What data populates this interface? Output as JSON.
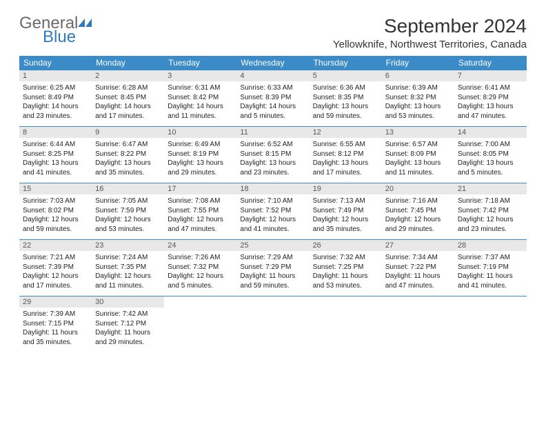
{
  "brand": {
    "word1": "General",
    "word2": "Blue",
    "text_color_gray": "#6a6a6a",
    "text_color_blue": "#2f7bbf",
    "icon_color": "#2f7bbf"
  },
  "title": "September 2024",
  "location": "Yellowknife, Northwest Territories, Canada",
  "colors": {
    "header_bg": "#3b8bc8",
    "header_text": "#ffffff",
    "daynum_bg": "#e8e8e8",
    "daynum_text": "#555555",
    "row_border": "#3b8bc8",
    "body_text": "#222222"
  },
  "weekdays": [
    "Sunday",
    "Monday",
    "Tuesday",
    "Wednesday",
    "Thursday",
    "Friday",
    "Saturday"
  ],
  "weeks": [
    [
      {
        "n": "1",
        "sr": "Sunrise: 6:25 AM",
        "ss": "Sunset: 8:49 PM",
        "dl": "Daylight: 14 hours and 23 minutes."
      },
      {
        "n": "2",
        "sr": "Sunrise: 6:28 AM",
        "ss": "Sunset: 8:45 PM",
        "dl": "Daylight: 14 hours and 17 minutes."
      },
      {
        "n": "3",
        "sr": "Sunrise: 6:31 AM",
        "ss": "Sunset: 8:42 PM",
        "dl": "Daylight: 14 hours and 11 minutes."
      },
      {
        "n": "4",
        "sr": "Sunrise: 6:33 AM",
        "ss": "Sunset: 8:39 PM",
        "dl": "Daylight: 14 hours and 5 minutes."
      },
      {
        "n": "5",
        "sr": "Sunrise: 6:36 AM",
        "ss": "Sunset: 8:35 PM",
        "dl": "Daylight: 13 hours and 59 minutes."
      },
      {
        "n": "6",
        "sr": "Sunrise: 6:39 AM",
        "ss": "Sunset: 8:32 PM",
        "dl": "Daylight: 13 hours and 53 minutes."
      },
      {
        "n": "7",
        "sr": "Sunrise: 6:41 AM",
        "ss": "Sunset: 8:29 PM",
        "dl": "Daylight: 13 hours and 47 minutes."
      }
    ],
    [
      {
        "n": "8",
        "sr": "Sunrise: 6:44 AM",
        "ss": "Sunset: 8:25 PM",
        "dl": "Daylight: 13 hours and 41 minutes."
      },
      {
        "n": "9",
        "sr": "Sunrise: 6:47 AM",
        "ss": "Sunset: 8:22 PM",
        "dl": "Daylight: 13 hours and 35 minutes."
      },
      {
        "n": "10",
        "sr": "Sunrise: 6:49 AM",
        "ss": "Sunset: 8:19 PM",
        "dl": "Daylight: 13 hours and 29 minutes."
      },
      {
        "n": "11",
        "sr": "Sunrise: 6:52 AM",
        "ss": "Sunset: 8:15 PM",
        "dl": "Daylight: 13 hours and 23 minutes."
      },
      {
        "n": "12",
        "sr": "Sunrise: 6:55 AM",
        "ss": "Sunset: 8:12 PM",
        "dl": "Daylight: 13 hours and 17 minutes."
      },
      {
        "n": "13",
        "sr": "Sunrise: 6:57 AM",
        "ss": "Sunset: 8:09 PM",
        "dl": "Daylight: 13 hours and 11 minutes."
      },
      {
        "n": "14",
        "sr": "Sunrise: 7:00 AM",
        "ss": "Sunset: 8:05 PM",
        "dl": "Daylight: 13 hours and 5 minutes."
      }
    ],
    [
      {
        "n": "15",
        "sr": "Sunrise: 7:03 AM",
        "ss": "Sunset: 8:02 PM",
        "dl": "Daylight: 12 hours and 59 minutes."
      },
      {
        "n": "16",
        "sr": "Sunrise: 7:05 AM",
        "ss": "Sunset: 7:59 PM",
        "dl": "Daylight: 12 hours and 53 minutes."
      },
      {
        "n": "17",
        "sr": "Sunrise: 7:08 AM",
        "ss": "Sunset: 7:55 PM",
        "dl": "Daylight: 12 hours and 47 minutes."
      },
      {
        "n": "18",
        "sr": "Sunrise: 7:10 AM",
        "ss": "Sunset: 7:52 PM",
        "dl": "Daylight: 12 hours and 41 minutes."
      },
      {
        "n": "19",
        "sr": "Sunrise: 7:13 AM",
        "ss": "Sunset: 7:49 PM",
        "dl": "Daylight: 12 hours and 35 minutes."
      },
      {
        "n": "20",
        "sr": "Sunrise: 7:16 AM",
        "ss": "Sunset: 7:45 PM",
        "dl": "Daylight: 12 hours and 29 minutes."
      },
      {
        "n": "21",
        "sr": "Sunrise: 7:18 AM",
        "ss": "Sunset: 7:42 PM",
        "dl": "Daylight: 12 hours and 23 minutes."
      }
    ],
    [
      {
        "n": "22",
        "sr": "Sunrise: 7:21 AM",
        "ss": "Sunset: 7:39 PM",
        "dl": "Daylight: 12 hours and 17 minutes."
      },
      {
        "n": "23",
        "sr": "Sunrise: 7:24 AM",
        "ss": "Sunset: 7:35 PM",
        "dl": "Daylight: 12 hours and 11 minutes."
      },
      {
        "n": "24",
        "sr": "Sunrise: 7:26 AM",
        "ss": "Sunset: 7:32 PM",
        "dl": "Daylight: 12 hours and 5 minutes."
      },
      {
        "n": "25",
        "sr": "Sunrise: 7:29 AM",
        "ss": "Sunset: 7:29 PM",
        "dl": "Daylight: 11 hours and 59 minutes."
      },
      {
        "n": "26",
        "sr": "Sunrise: 7:32 AM",
        "ss": "Sunset: 7:25 PM",
        "dl": "Daylight: 11 hours and 53 minutes."
      },
      {
        "n": "27",
        "sr": "Sunrise: 7:34 AM",
        "ss": "Sunset: 7:22 PM",
        "dl": "Daylight: 11 hours and 47 minutes."
      },
      {
        "n": "28",
        "sr": "Sunrise: 7:37 AM",
        "ss": "Sunset: 7:19 PM",
        "dl": "Daylight: 11 hours and 41 minutes."
      }
    ],
    [
      {
        "n": "29",
        "sr": "Sunrise: 7:39 AM",
        "ss": "Sunset: 7:15 PM",
        "dl": "Daylight: 11 hours and 35 minutes."
      },
      {
        "n": "30",
        "sr": "Sunrise: 7:42 AM",
        "ss": "Sunset: 7:12 PM",
        "dl": "Daylight: 11 hours and 29 minutes."
      },
      null,
      null,
      null,
      null,
      null
    ]
  ]
}
